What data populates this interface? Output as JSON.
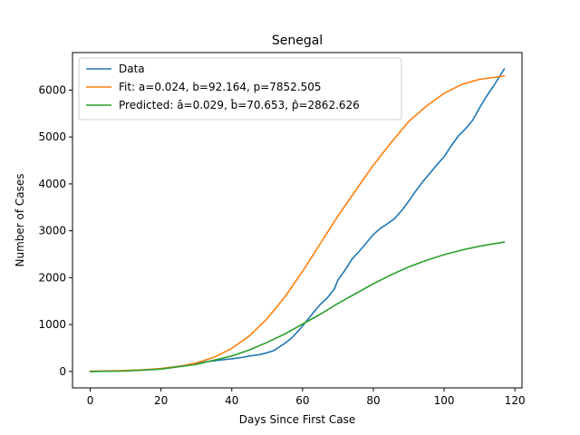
{
  "chart_data": {
    "type": "line",
    "title": "Senegal",
    "xlabel": "Days Since First Case",
    "ylabel": "Number of Cases",
    "xlim": [
      -5,
      122
    ],
    "ylim": [
      -350,
      6800
    ],
    "xticks": [
      0,
      20,
      40,
      60,
      80,
      100,
      120
    ],
    "yticks": [
      0,
      1000,
      2000,
      3000,
      4000,
      5000,
      6000
    ],
    "grid": false,
    "legend_position": "upper left",
    "series": [
      {
        "name": "Data",
        "color": "#1f77b4",
        "x": [
          0,
          5,
          10,
          15,
          20,
          24,
          27,
          30,
          33,
          37,
          40,
          43,
          45,
          48,
          50,
          52,
          55,
          57,
          59,
          61,
          63,
          65,
          67,
          69,
          70,
          72,
          74,
          76,
          78,
          80,
          82,
          84,
          86,
          88,
          90,
          92,
          94,
          96,
          98,
          100,
          102,
          104,
          106,
          108,
          110,
          112,
          114,
          117
        ],
        "y": [
          0,
          5,
          15,
          30,
          60,
          100,
          130,
          170,
          210,
          245,
          270,
          300,
          330,
          360,
          400,
          450,
          600,
          720,
          880,
          1060,
          1250,
          1430,
          1570,
          1760,
          1950,
          2160,
          2400,
          2560,
          2740,
          2920,
          3050,
          3150,
          3260,
          3430,
          3630,
          3850,
          4050,
          4230,
          4410,
          4580,
          4810,
          5020,
          5170,
          5350,
          5620,
          5870,
          6090,
          6450
        ]
      },
      {
        "name": "Fit: a=0.024, b=92.164, p=7852.505",
        "color": "#ff7f0e",
        "x": [
          0,
          5,
          10,
          15,
          20,
          25,
          30,
          35,
          40,
          45,
          50,
          55,
          60,
          65,
          70,
          75,
          80,
          85,
          90,
          95,
          100,
          105,
          110,
          117
        ],
        "y": [
          6,
          11,
          20,
          35,
          62,
          107,
          182,
          304,
          490,
          760,
          1125,
          1590,
          2135,
          2725,
          3315,
          3860,
          4400,
          4880,
          5330,
          5660,
          5930,
          6120,
          6230,
          6300
        ]
      },
      {
        "name": "Predicted: â=0.029, b̂=70.653, p̂=2862.626",
        "color": "#2ca02c",
        "x": [
          0,
          10,
          20,
          30,
          40,
          45,
          50,
          55,
          60,
          65,
          70,
          75,
          80,
          85,
          90,
          95,
          100,
          105,
          110,
          117
        ],
        "y": [
          0,
          10,
          50,
          150,
          330,
          460,
          620,
          800,
          1010,
          1220,
          1450,
          1660,
          1870,
          2060,
          2230,
          2370,
          2490,
          2590,
          2670,
          2760
        ]
      }
    ]
  }
}
